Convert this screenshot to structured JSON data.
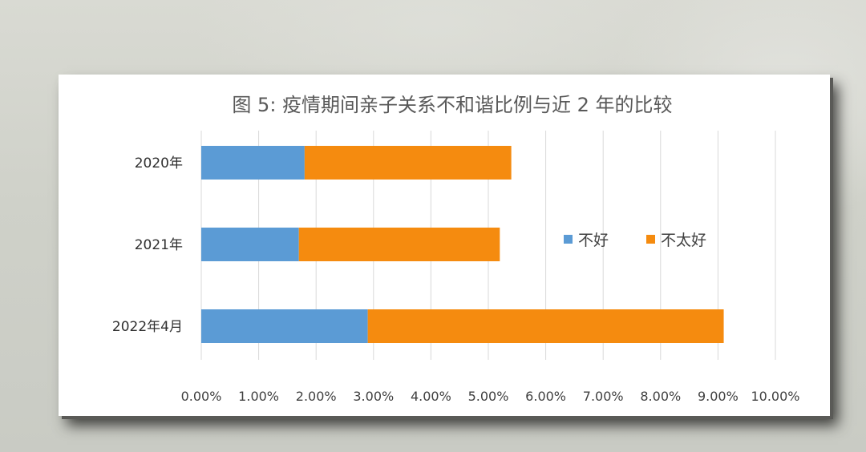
{
  "chart_data": {
    "type": "bar",
    "orientation": "horizontal",
    "stacked": true,
    "title": "图 5: 疫情期间亲子关系不和谐比例与近 2 年的比较",
    "categories": [
      "2020年",
      "2021年",
      "2022年4月"
    ],
    "series": [
      {
        "name": "不好",
        "color": "#5b9bd5",
        "values": [
          1.8,
          1.7,
          2.9
        ]
      },
      {
        "name": "不太好",
        "color": "#f58b0f",
        "values": [
          3.6,
          3.5,
          6.2
        ]
      }
    ],
    "xlim": [
      0,
      10
    ],
    "x_ticks": [
      "0.00%",
      "1.00%",
      "2.00%",
      "3.00%",
      "4.00%",
      "5.00%",
      "6.00%",
      "7.00%",
      "8.00%",
      "9.00%",
      "10.00%"
    ],
    "grid": "vertical",
    "legend_position": "right"
  }
}
